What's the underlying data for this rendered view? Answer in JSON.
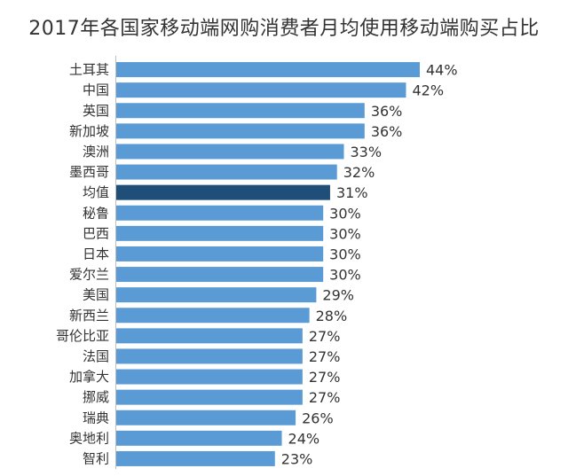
{
  "chart_data": {
    "type": "bar",
    "orientation": "horizontal",
    "title": "2017年各国家移动端网购消费者月均使用移动端购买占比",
    "categories": [
      "土耳其",
      "中国",
      "英国",
      "新加坡",
      "澳洲",
      "墨西哥",
      "均值",
      "秘鲁",
      "巴西",
      "日本",
      "爱尔兰",
      "美国",
      "新西兰",
      "哥伦比亚",
      "法国",
      "加拿大",
      "挪威",
      "瑞典",
      "奥地利",
      "智利"
    ],
    "values": [
      44,
      42,
      36,
      36,
      33,
      32,
      31,
      30,
      30,
      30,
      30,
      29,
      28,
      27,
      27,
      27,
      27,
      26,
      24,
      23
    ],
    "value_labels": [
      "44%",
      "42%",
      "36%",
      "36%",
      "33%",
      "32%",
      "31%",
      "30%",
      "30%",
      "30%",
      "30%",
      "29%",
      "28%",
      "27%",
      "27%",
      "27%",
      "27%",
      "26%",
      "24%",
      "23%"
    ],
    "highlight_category": "均值",
    "colors": {
      "bar": "#5b9bd5",
      "highlight": "#1f4e79",
      "label": "#333333"
    },
    "xlim": [
      0,
      44
    ],
    "grid": false,
    "legend": "none"
  },
  "footnote": ""
}
